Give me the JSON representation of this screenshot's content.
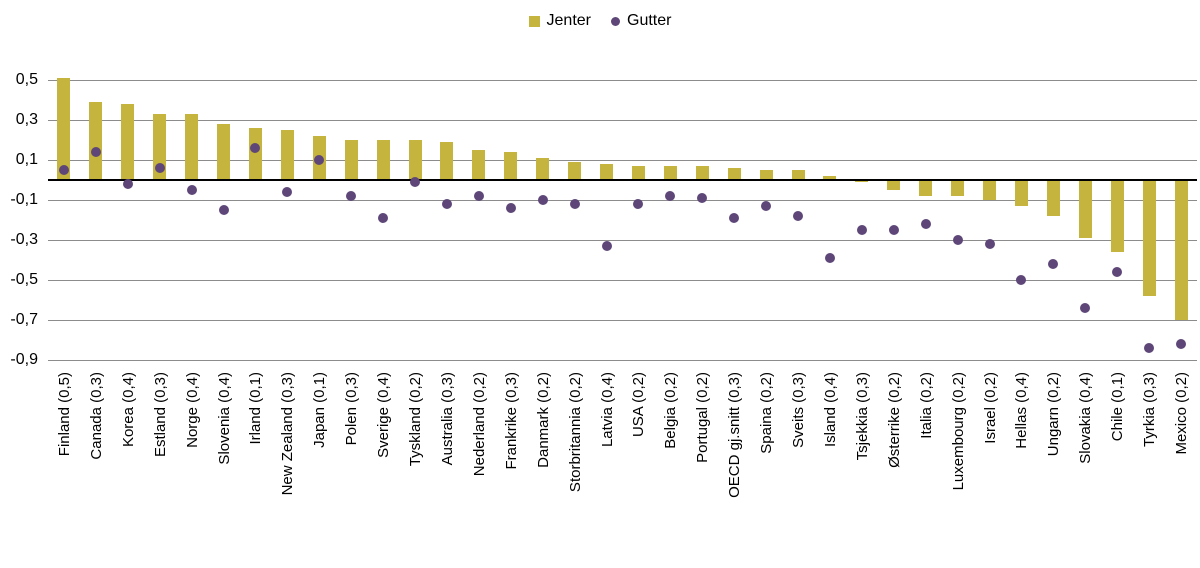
{
  "chart_data": {
    "type": "bar",
    "title": "",
    "grid": true,
    "legend_position": "top",
    "legend": [
      {
        "label": "Jenter",
        "marker": "square",
        "color": "#C5B43E"
      },
      {
        "label": "Gutter",
        "marker": "circle",
        "color": "#5E4778"
      }
    ],
    "ylim": [
      -0.9,
      0.5
    ],
    "ytick_labels": [
      "0,5",
      "0,3",
      "0,1",
      "-0,1",
      "-0,3",
      "-0,5",
      "-0,7",
      "-0,9"
    ],
    "ytick_values": [
      0.5,
      0.3,
      0.1,
      -0.1,
      -0.3,
      -0.5,
      -0.7,
      -0.9
    ],
    "xlabel": "",
    "ylabel": "",
    "categories": [
      "Finland (0,5)",
      "Canada (0,3)",
      "Korea (0,4)",
      "Estland (0,3)",
      "Norge (0,4)",
      "Slovenia (0,4)",
      "Irland (0,1)",
      "New Zealand (0,3)",
      "Japan (0,1)",
      "Polen (0,3)",
      "Sverige (0,4)",
      "Tyskland (0,2)",
      "Australia (0,3)",
      "Nederland (0,2)",
      "Frankrike (0,3)",
      "Danmark (0,2)",
      "Storbritannia (0,2)",
      "Latvia (0,4)",
      "USA (0,2)",
      "Belgia (0,2)",
      "Portugal (0,2)",
      "OECD gj.snitt (0,3)",
      "Spaina (0,2)",
      "Sveits (0,3)",
      "Island (0,4)",
      "Tsjekkia (0,3)",
      "Østerrike (0,2)",
      "Italia (0,2)",
      "Luxembourg (0,2)",
      "Israel (0,2)",
      "Hellas (0,4)",
      "Ungarn (0,2)",
      "Slovakia (0,4)",
      "Chile (0,1)",
      "Tyrkia (0,3)",
      "Mexico (0,2)"
    ],
    "series": [
      {
        "name": "Jenter",
        "mark": "bar",
        "color": "#C5B43E",
        "values": [
          0.51,
          0.39,
          0.38,
          0.33,
          0.33,
          0.28,
          0.26,
          0.25,
          0.22,
          0.2,
          0.2,
          0.2,
          0.19,
          0.15,
          0.14,
          0.11,
          0.09,
          0.08,
          0.07,
          0.07,
          0.07,
          0.06,
          0.05,
          0.05,
          0.02,
          -0.01,
          -0.05,
          -0.08,
          -0.08,
          -0.1,
          -0.13,
          -0.18,
          -0.29,
          -0.36,
          -0.58,
          -0.7
        ]
      },
      {
        "name": "Gutter",
        "mark": "scatter",
        "color": "#5E4778",
        "values": [
          0.05,
          0.14,
          -0.02,
          0.06,
          -0.05,
          -0.15,
          0.16,
          -0.06,
          0.1,
          -0.08,
          -0.19,
          -0.01,
          -0.12,
          -0.08,
          -0.14,
          -0.1,
          -0.12,
          -0.33,
          -0.12,
          -0.08,
          -0.09,
          -0.19,
          -0.13,
          -0.18,
          -0.39,
          -0.25,
          -0.25,
          -0.22,
          -0.3,
          -0.32,
          -0.5,
          -0.42,
          -0.64,
          -0.46,
          -0.84,
          -0.82
        ]
      }
    ]
  }
}
